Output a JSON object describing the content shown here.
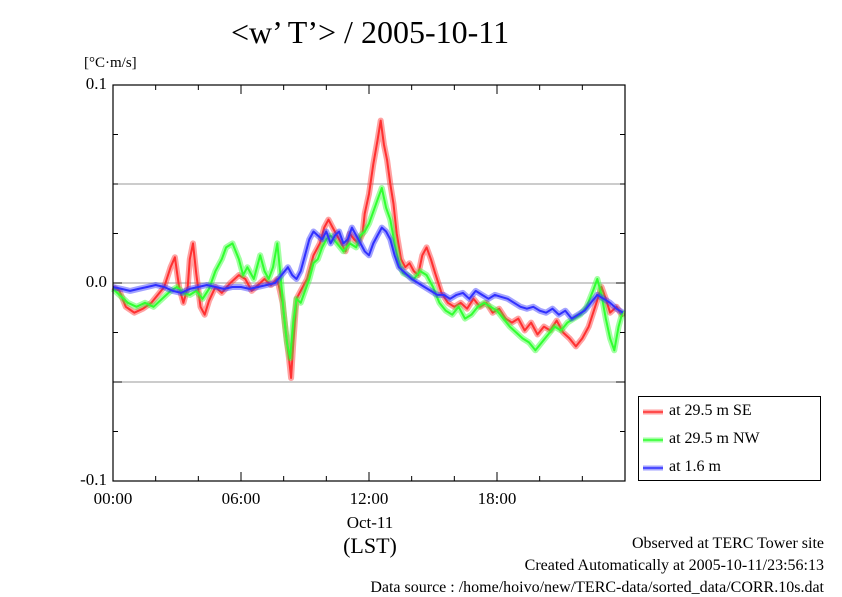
{
  "chart_data": {
    "type": "line",
    "title": "<w’ T’> / 2005-10-11",
    "ylabel": "[°C·m/s]",
    "xlabel": "(LST)",
    "date_label": "Oct-11",
    "x_range_hours": [
      0,
      24
    ],
    "ylim": [
      -0.1,
      0.1
    ],
    "x_ticks": [
      {
        "hour": 0,
        "label": "00:00"
      },
      {
        "hour": 6,
        "label": "06:00"
      },
      {
        "hour": 12,
        "label": "12:00"
      },
      {
        "hour": 18,
        "label": "18:00"
      }
    ],
    "y_ticks": [
      {
        "value": 0.1,
        "label": "0.1"
      },
      {
        "value": 0.0,
        "label": "0.0"
      },
      {
        "value": -0.1,
        "label": "-0.1"
      }
    ],
    "grid": "horizontal lines at -0.05, 0.0, 0.05",
    "legend_position": "right, below plot top",
    "series": [
      {
        "name": "at 29.5 m SE",
        "color": "#ff3030",
        "points": [
          [
            0.0,
            -0.002
          ],
          [
            0.3,
            -0.004
          ],
          [
            0.6,
            -0.012
          ],
          [
            1.0,
            -0.015
          ],
          [
            1.4,
            -0.013
          ],
          [
            1.8,
            -0.01
          ],
          [
            2.1,
            -0.006
          ],
          [
            2.4,
            -0.002
          ],
          [
            2.7,
            0.008
          ],
          [
            2.9,
            0.013
          ],
          [
            3.1,
            -0.002
          ],
          [
            3.3,
            -0.01
          ],
          [
            3.5,
            -0.002
          ],
          [
            3.6,
            0.012
          ],
          [
            3.75,
            0.02
          ],
          [
            3.9,
            0.005
          ],
          [
            4.1,
            -0.012
          ],
          [
            4.3,
            -0.016
          ],
          [
            4.5,
            -0.009
          ],
          [
            4.8,
            -0.002
          ],
          [
            5.1,
            -0.005
          ],
          [
            5.5,
            0.0
          ],
          [
            5.9,
            0.004
          ],
          [
            6.2,
            0.002
          ],
          [
            6.5,
            -0.004
          ],
          [
            6.8,
            -0.001
          ],
          [
            7.1,
            0.002
          ],
          [
            7.4,
            -0.001
          ],
          [
            7.7,
            0.002
          ],
          [
            7.95,
            -0.01
          ],
          [
            8.1,
            -0.025
          ],
          [
            8.25,
            -0.038
          ],
          [
            8.35,
            -0.048
          ],
          [
            8.45,
            -0.03
          ],
          [
            8.6,
            -0.008
          ],
          [
            8.8,
            -0.004
          ],
          [
            9.1,
            0.002
          ],
          [
            9.4,
            0.014
          ],
          [
            9.7,
            0.02
          ],
          [
            9.9,
            0.028
          ],
          [
            10.1,
            0.032
          ],
          [
            10.3,
            0.028
          ],
          [
            10.6,
            0.022
          ],
          [
            10.9,
            0.016
          ],
          [
            11.1,
            0.025
          ],
          [
            11.3,
            0.022
          ],
          [
            11.5,
            0.02
          ],
          [
            11.7,
            0.025
          ],
          [
            11.8,
            0.035
          ],
          [
            12.0,
            0.045
          ],
          [
            12.2,
            0.06
          ],
          [
            12.4,
            0.072
          ],
          [
            12.55,
            0.082
          ],
          [
            12.7,
            0.07
          ],
          [
            12.85,
            0.062
          ],
          [
            13.0,
            0.05
          ],
          [
            13.15,
            0.04
          ],
          [
            13.3,
            0.025
          ],
          [
            13.5,
            0.012
          ],
          [
            13.7,
            0.008
          ],
          [
            13.9,
            0.01
          ],
          [
            14.1,
            0.006
          ],
          [
            14.3,
            0.004
          ],
          [
            14.5,
            0.014
          ],
          [
            14.7,
            0.018
          ],
          [
            14.9,
            0.012
          ],
          [
            15.1,
            0.005
          ],
          [
            15.4,
            -0.005
          ],
          [
            15.7,
            -0.01
          ],
          [
            16.0,
            -0.012
          ],
          [
            16.3,
            -0.01
          ],
          [
            16.6,
            -0.013
          ],
          [
            16.9,
            -0.008
          ],
          [
            17.2,
            -0.012
          ],
          [
            17.5,
            -0.01
          ],
          [
            17.8,
            -0.015
          ],
          [
            18.1,
            -0.013
          ],
          [
            18.4,
            -0.018
          ],
          [
            18.7,
            -0.02
          ],
          [
            19.0,
            -0.018
          ],
          [
            19.3,
            -0.024
          ],
          [
            19.6,
            -0.02
          ],
          [
            19.9,
            -0.026
          ],
          [
            20.2,
            -0.022
          ],
          [
            20.5,
            -0.024
          ],
          [
            20.8,
            -0.019
          ],
          [
            21.1,
            -0.025
          ],
          [
            21.4,
            -0.028
          ],
          [
            21.7,
            -0.032
          ],
          [
            22.0,
            -0.028
          ],
          [
            22.3,
            -0.022
          ],
          [
            22.6,
            -0.012
          ],
          [
            22.9,
            -0.002
          ],
          [
            23.1,
            -0.008
          ],
          [
            23.3,
            -0.015
          ],
          [
            23.6,
            -0.012
          ],
          [
            23.9,
            -0.017
          ]
        ]
      },
      {
        "name": "at 29.5 m NW",
        "color": "#30ff30",
        "points": [
          [
            0.0,
            -0.003
          ],
          [
            0.3,
            -0.006
          ],
          [
            0.7,
            -0.01
          ],
          [
            1.1,
            -0.012
          ],
          [
            1.5,
            -0.01
          ],
          [
            1.9,
            -0.012
          ],
          [
            2.3,
            -0.008
          ],
          [
            2.7,
            -0.004
          ],
          [
            3.0,
            -0.002
          ],
          [
            3.3,
            -0.005
          ],
          [
            3.6,
            -0.006
          ],
          [
            3.9,
            -0.004
          ],
          [
            4.2,
            -0.008
          ],
          [
            4.5,
            -0.003
          ],
          [
            4.8,
            0.006
          ],
          [
            5.1,
            0.012
          ],
          [
            5.3,
            0.018
          ],
          [
            5.6,
            0.02
          ],
          [
            5.9,
            0.012
          ],
          [
            6.1,
            0.004
          ],
          [
            6.3,
            0.008
          ],
          [
            6.6,
            0.002
          ],
          [
            6.9,
            0.014
          ],
          [
            7.1,
            0.006
          ],
          [
            7.3,
            0.002
          ],
          [
            7.5,
            0.008
          ],
          [
            7.7,
            0.02
          ],
          [
            7.85,
            0.004
          ],
          [
            8.0,
            -0.015
          ],
          [
            8.15,
            -0.03
          ],
          [
            8.3,
            -0.038
          ],
          [
            8.45,
            -0.02
          ],
          [
            8.6,
            -0.008
          ],
          [
            8.8,
            -0.01
          ],
          [
            9.0,
            -0.004
          ],
          [
            9.2,
            0.002
          ],
          [
            9.4,
            0.01
          ],
          [
            9.6,
            0.012
          ],
          [
            9.8,
            0.018
          ],
          [
            10.0,
            0.022
          ],
          [
            10.2,
            0.024
          ],
          [
            10.5,
            0.02
          ],
          [
            10.8,
            0.016
          ],
          [
            11.1,
            0.02
          ],
          [
            11.4,
            0.018
          ],
          [
            11.6,
            0.024
          ],
          [
            11.8,
            0.026
          ],
          [
            12.0,
            0.03
          ],
          [
            12.2,
            0.036
          ],
          [
            12.4,
            0.042
          ],
          [
            12.6,
            0.048
          ],
          [
            12.8,
            0.038
          ],
          [
            13.0,
            0.032
          ],
          [
            13.2,
            0.02
          ],
          [
            13.4,
            0.01
          ],
          [
            13.6,
            0.005
          ],
          [
            13.8,
            0.004
          ],
          [
            14.1,
            0.002
          ],
          [
            14.4,
            0.006
          ],
          [
            14.7,
            0.004
          ],
          [
            15.0,
            -0.002
          ],
          [
            15.3,
            -0.01
          ],
          [
            15.6,
            -0.014
          ],
          [
            15.9,
            -0.016
          ],
          [
            16.2,
            -0.012
          ],
          [
            16.5,
            -0.018
          ],
          [
            16.8,
            -0.016
          ],
          [
            17.1,
            -0.012
          ],
          [
            17.4,
            -0.01
          ],
          [
            17.7,
            -0.012
          ],
          [
            18.0,
            -0.014
          ],
          [
            18.3,
            -0.018
          ],
          [
            18.6,
            -0.022
          ],
          [
            18.9,
            -0.025
          ],
          [
            19.2,
            -0.028
          ],
          [
            19.5,
            -0.03
          ],
          [
            19.8,
            -0.034
          ],
          [
            20.1,
            -0.03
          ],
          [
            20.4,
            -0.026
          ],
          [
            20.7,
            -0.022
          ],
          [
            21.0,
            -0.024
          ],
          [
            21.3,
            -0.02
          ],
          [
            21.6,
            -0.018
          ],
          [
            21.9,
            -0.016
          ],
          [
            22.2,
            -0.012
          ],
          [
            22.5,
            -0.004
          ],
          [
            22.7,
            0.002
          ],
          [
            22.9,
            -0.006
          ],
          [
            23.1,
            -0.018
          ],
          [
            23.3,
            -0.028
          ],
          [
            23.5,
            -0.034
          ],
          [
            23.7,
            -0.022
          ],
          [
            23.9,
            -0.014
          ]
        ]
      },
      {
        "name": "at 1.6 m",
        "color": "#3030ff",
        "points": [
          [
            0.0,
            -0.002
          ],
          [
            0.4,
            -0.003
          ],
          [
            0.8,
            -0.004
          ],
          [
            1.2,
            -0.003
          ],
          [
            1.6,
            -0.002
          ],
          [
            2.0,
            -0.001
          ],
          [
            2.4,
            -0.002
          ],
          [
            2.8,
            -0.004
          ],
          [
            3.2,
            -0.005
          ],
          [
            3.6,
            -0.003
          ],
          [
            4.0,
            -0.002
          ],
          [
            4.4,
            -0.001
          ],
          [
            4.8,
            -0.002
          ],
          [
            5.2,
            -0.003
          ],
          [
            5.6,
            -0.002
          ],
          [
            6.0,
            -0.002
          ],
          [
            6.4,
            -0.003
          ],
          [
            6.8,
            -0.002
          ],
          [
            7.2,
            -0.001
          ],
          [
            7.6,
            0.0
          ],
          [
            7.9,
            0.004
          ],
          [
            8.2,
            0.008
          ],
          [
            8.4,
            0.004
          ],
          [
            8.6,
            0.002
          ],
          [
            8.8,
            0.006
          ],
          [
            9.0,
            0.014
          ],
          [
            9.2,
            0.022
          ],
          [
            9.4,
            0.026
          ],
          [
            9.6,
            0.024
          ],
          [
            9.8,
            0.022
          ],
          [
            10.0,
            0.026
          ],
          [
            10.2,
            0.02
          ],
          [
            10.4,
            0.024
          ],
          [
            10.6,
            0.026
          ],
          [
            10.8,
            0.02
          ],
          [
            11.0,
            0.022
          ],
          [
            11.2,
            0.028
          ],
          [
            11.4,
            0.024
          ],
          [
            11.6,
            0.02
          ],
          [
            11.8,
            0.016
          ],
          [
            12.0,
            0.014
          ],
          [
            12.2,
            0.02
          ],
          [
            12.4,
            0.024
          ],
          [
            12.6,
            0.028
          ],
          [
            12.8,
            0.026
          ],
          [
            13.0,
            0.022
          ],
          [
            13.2,
            0.014
          ],
          [
            13.4,
            0.008
          ],
          [
            13.6,
            0.006
          ],
          [
            13.8,
            0.004
          ],
          [
            14.0,
            0.002
          ],
          [
            14.3,
            0.0
          ],
          [
            14.6,
            -0.002
          ],
          [
            14.9,
            -0.004
          ],
          [
            15.2,
            -0.006
          ],
          [
            15.5,
            -0.006
          ],
          [
            15.8,
            -0.008
          ],
          [
            16.1,
            -0.006
          ],
          [
            16.4,
            -0.005
          ],
          [
            16.7,
            -0.008
          ],
          [
            17.0,
            -0.004
          ],
          [
            17.3,
            -0.006
          ],
          [
            17.6,
            -0.008
          ],
          [
            17.9,
            -0.006
          ],
          [
            18.2,
            -0.007
          ],
          [
            18.5,
            -0.008
          ],
          [
            18.8,
            -0.01
          ],
          [
            19.1,
            -0.012
          ],
          [
            19.4,
            -0.013
          ],
          [
            19.7,
            -0.012
          ],
          [
            20.0,
            -0.014
          ],
          [
            20.3,
            -0.015
          ],
          [
            20.6,
            -0.013
          ],
          [
            20.9,
            -0.016
          ],
          [
            21.2,
            -0.014
          ],
          [
            21.5,
            -0.018
          ],
          [
            21.8,
            -0.016
          ],
          [
            22.1,
            -0.014
          ],
          [
            22.4,
            -0.01
          ],
          [
            22.7,
            -0.006
          ],
          [
            23.0,
            -0.008
          ],
          [
            23.3,
            -0.01
          ],
          [
            23.6,
            -0.013
          ],
          [
            23.9,
            -0.015
          ]
        ]
      }
    ]
  },
  "footer": {
    "line1": "Observed at TERC Tower site",
    "line2": "Created Automatically at 2005-10-11/23:56:13",
    "line3": "Data source : /home/hoivo/new/TERC-data/sorted_data/CORR.10s.dat"
  }
}
